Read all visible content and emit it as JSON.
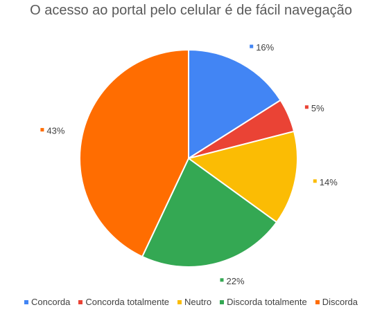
{
  "chart_data": {
    "type": "pie",
    "title": "O acesso ao portal pelo celular é de fácil navegação",
    "legend_position": "bottom",
    "slices": [
      {
        "name": "Concorda",
        "value": 16,
        "label": "16%",
        "color": "#4285F4"
      },
      {
        "name": "Concorda totalmente",
        "value": 5,
        "label": "5%",
        "color": "#EA4335"
      },
      {
        "name": "Neutro",
        "value": 14,
        "label": "14%",
        "color": "#FBBC04"
      },
      {
        "name": "Discorda totalmente",
        "value": 22,
        "label": "22%",
        "color": "#34A853"
      },
      {
        "name": "Discorda",
        "value": 43,
        "label": "43%",
        "color": "#FF6D01"
      }
    ]
  }
}
